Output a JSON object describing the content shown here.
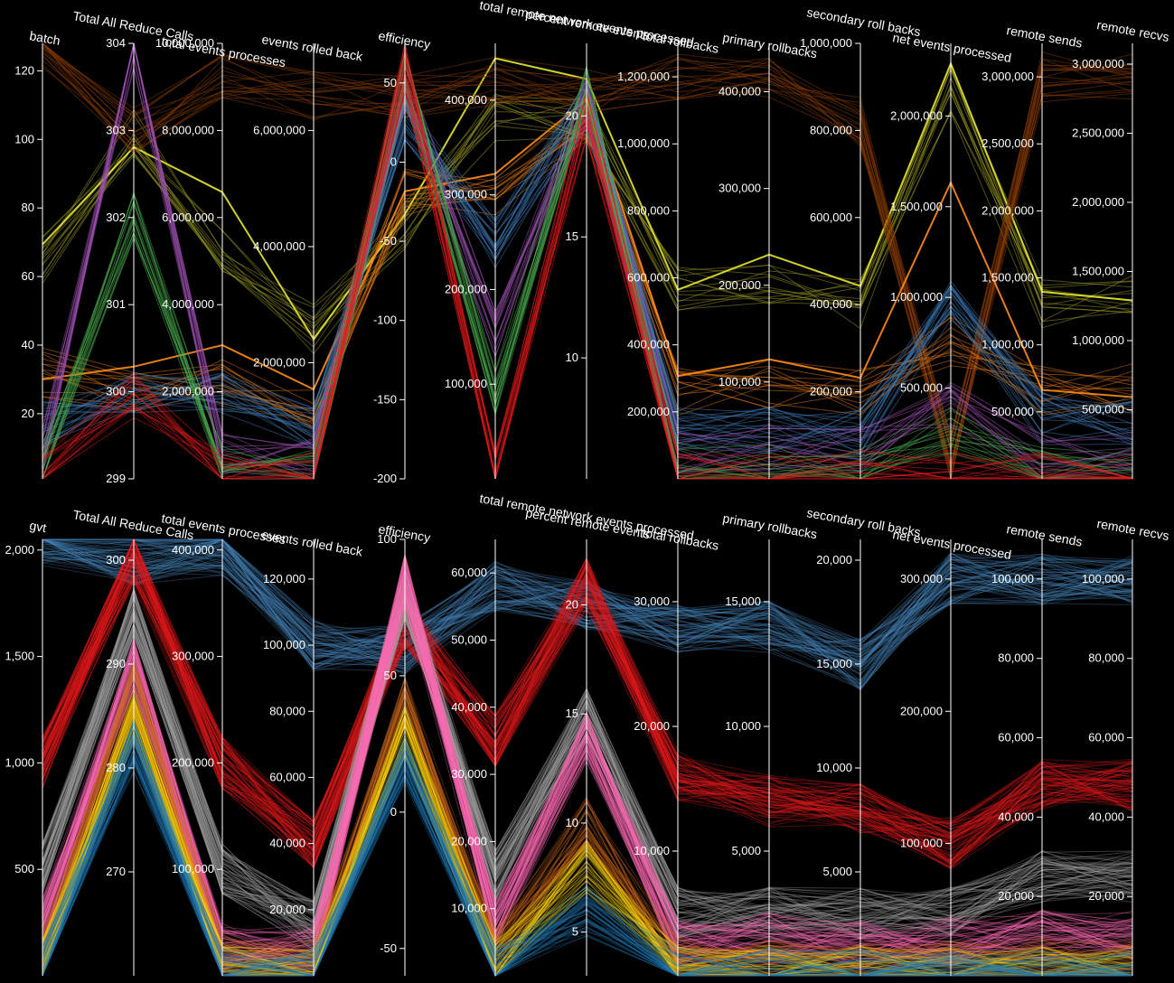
{
  "chart_data": [
    {
      "type": "parallel-coordinates",
      "axes": [
        {
          "name": "batch",
          "range": [
            1,
            128
          ],
          "ticks": [
            20,
            40,
            60,
            80,
            100,
            120
          ]
        },
        {
          "name": "Total All Reduce Calls",
          "range": [
            299,
            304
          ],
          "ticks": [
            299,
            300,
            301,
            302,
            303,
            304
          ]
        },
        {
          "name": "total events processes",
          "range": [
            0,
            10000000
          ],
          "ticks": [
            2000000,
            4000000,
            6000000,
            8000000,
            10000000
          ]
        },
        {
          "name": "events rolled back",
          "range": [
            0,
            7500000
          ],
          "ticks": [
            2000000,
            4000000,
            6000000
          ]
        },
        {
          "name": "efficiency",
          "range": [
            -200,
            75
          ],
          "ticks": [
            -200,
            -150,
            -100,
            -50,
            0,
            50
          ]
        },
        {
          "name": "total remote network events processed",
          "range": [
            0,
            460000
          ],
          "ticks": [
            100000,
            200000,
            300000,
            400000
          ]
        },
        {
          "name": "percent remote events",
          "range": [
            5,
            23
          ],
          "ticks": [
            10,
            15,
            20
          ]
        },
        {
          "name": "total rollbacks",
          "range": [
            0,
            1300000
          ],
          "ticks": [
            200000,
            400000,
            600000,
            800000,
            1000000,
            1200000
          ]
        },
        {
          "name": "primary rollbacks",
          "range": [
            0,
            450000
          ],
          "ticks": [
            100000,
            200000,
            300000,
            400000
          ]
        },
        {
          "name": "secondary roll backs",
          "range": [
            0,
            1000000
          ],
          "ticks": [
            200000,
            400000,
            600000,
            800000,
            1000000
          ]
        },
        {
          "name": "net events processed",
          "range": [
            0,
            2400000
          ],
          "ticks": [
            500000,
            1000000,
            1500000,
            2000000
          ]
        },
        {
          "name": "remote sends",
          "range": [
            0,
            3250000
          ],
          "ticks": [
            500000,
            1000000,
            1500000,
            2000000,
            2500000,
            3000000
          ]
        },
        {
          "name": "remote recvs",
          "range": [
            0,
            3150000
          ],
          "ticks": [
            500000,
            1000000,
            1500000,
            2000000,
            2500000,
            3000000
          ]
        }
      ],
      "groups": [
        {
          "color": "#9b9b1f",
          "count": 14,
          "values": [
            64,
            303,
            5200000,
            2600000,
            -40,
            380000,
            20,
            580000,
            200000,
            400000,
            2150000,
            1300000,
            1300000
          ]
        },
        {
          "color": "#e6e632",
          "count": 1,
          "values": [
            64,
            303,
            6000000,
            2800000,
            -45,
            430000,
            20.5,
            600000,
            210000,
            420000,
            2300000,
            1250000,
            1250000
          ]
        },
        {
          "color": "#8a3c00",
          "count": 20,
          "values": [
            128,
            303,
            9300000,
            6600000,
            40,
            420000,
            21,
            1200000,
            410000,
            820000,
            120000,
            3000000,
            2900000
          ]
        },
        {
          "color": "#e6780f",
          "count": 14,
          "values": [
            32,
            300,
            2300000,
            1300000,
            -20,
            300000,
            20,
            260000,
            100000,
            200000,
            750000,
            650000,
            650000
          ]
        },
        {
          "color": "#ff8c1a",
          "count": 1,
          "values": [
            32,
            300,
            2500000,
            1500000,
            -25,
            330000,
            21,
            280000,
            105000,
            210000,
            1500000,
            700000,
            700000
          ]
        },
        {
          "color": "#3c78b4",
          "count": 22,
          "values": [
            16,
            300,
            1900000,
            850000,
            30,
            250000,
            20.5,
            140000,
            50000,
            100000,
            980000,
            450000,
            420000
          ]
        },
        {
          "color": "#9b4fb0",
          "count": 16,
          "values": [
            8,
            304,
            600000,
            300000,
            50,
            150000,
            20.5,
            80000,
            30000,
            60000,
            400000,
            150000,
            150000
          ]
        },
        {
          "color": "#4caf50",
          "count": 16,
          "values": [
            4,
            302,
            200000,
            100000,
            55,
            90000,
            21,
            40000,
            10000,
            20000,
            250000,
            55000,
            55000
          ]
        },
        {
          "color": "#e41a1c",
          "count": 16,
          "values": [
            2,
            300,
            50000,
            20000,
            60,
            5000,
            20,
            8000,
            4000,
            8000,
            35000,
            15000,
            15000
          ]
        }
      ]
    },
    {
      "type": "parallel-coordinates",
      "axes": [
        {
          "name": "gvt",
          "range": [
            0,
            2050
          ],
          "ticks": [
            500,
            1000,
            1500,
            2000
          ]
        },
        {
          "name": "Total All Reduce Calls",
          "range": [
            260,
            302
          ],
          "ticks": [
            270,
            280,
            290,
            300
          ]
        },
        {
          "name": "total events processes",
          "range": [
            0,
            410000
          ],
          "ticks": [
            100000,
            200000,
            300000,
            400000
          ]
        },
        {
          "name": "events rolled back",
          "range": [
            0,
            132000
          ],
          "ticks": [
            20000,
            40000,
            60000,
            80000,
            100000,
            120000
          ]
        },
        {
          "name": "efficiency",
          "range": [
            -60,
            100
          ],
          "ticks": [
            -50,
            0,
            50,
            100
          ]
        },
        {
          "name": "total remote network events processed",
          "range": [
            0,
            65000
          ],
          "ticks": [
            10000,
            20000,
            30000,
            40000,
            50000,
            60000
          ]
        },
        {
          "name": "percent remote events",
          "range": [
            3,
            23
          ],
          "ticks": [
            5,
            10,
            15,
            20
          ]
        },
        {
          "name": "total rollbacks",
          "range": [
            0,
            35000
          ],
          "ticks": [
            10000,
            20000,
            30000
          ]
        },
        {
          "name": "primary rollbacks",
          "range": [
            0,
            17500
          ],
          "ticks": [
            5000,
            10000,
            15000
          ]
        },
        {
          "name": "secondary roll backs",
          "range": [
            0,
            21000
          ],
          "ticks": [
            5000,
            10000,
            15000,
            20000
          ]
        },
        {
          "name": "net events processed",
          "range": [
            0,
            330000
          ],
          "ticks": [
            100000,
            200000,
            300000
          ]
        },
        {
          "name": "remote sends",
          "range": [
            0,
            110000
          ],
          "ticks": [
            20000,
            40000,
            60000,
            80000,
            100000
          ]
        },
        {
          "name": "remote recvs",
          "range": [
            0,
            110000
          ],
          "ticks": [
            20000,
            40000,
            60000,
            80000,
            100000
          ]
        }
      ],
      "groups": [
        {
          "color": "#4682b4",
          "count": 70,
          "values": [
            2048,
            300,
            400000,
            100000,
            60,
            58000,
            20,
            28000,
            14000,
            15000,
            300000,
            100000,
            100000
          ]
        },
        {
          "color": "#e41a1c",
          "count": 70,
          "values": [
            1000,
            300,
            200000,
            40000,
            70,
            35000,
            21,
            16000,
            7000,
            8000,
            100000,
            48000,
            48000
          ]
        },
        {
          "color": "#a0a0a0",
          "count": 60,
          "values": [
            500,
            295,
            100000,
            15000,
            80,
            15000,
            15,
            5000,
            2500,
            3000,
            50000,
            25000,
            25000
          ]
        },
        {
          "color": "#ff69b4",
          "count": 60,
          "values": [
            250,
            290,
            25000,
            8000,
            85,
            8000,
            14,
            2500,
            1500,
            1500,
            25000,
            10000,
            10000
          ]
        },
        {
          "color": "#d2691e",
          "count": 40,
          "values": [
            100,
            288,
            12000,
            3000,
            40,
            3000,
            10,
            1000,
            500,
            500,
            8000,
            3000,
            3000
          ]
        },
        {
          "color": "#ffd700",
          "count": 50,
          "values": [
            50,
            285,
            6000,
            1000,
            30,
            1500,
            8,
            300,
            200,
            200,
            3000,
            800,
            800
          ]
        },
        {
          "color": "#1f77b4",
          "count": 50,
          "values": [
            20,
            282,
            2000,
            300,
            20,
            500,
            6,
            100,
            80,
            80,
            1000,
            300,
            300
          ]
        }
      ]
    }
  ]
}
